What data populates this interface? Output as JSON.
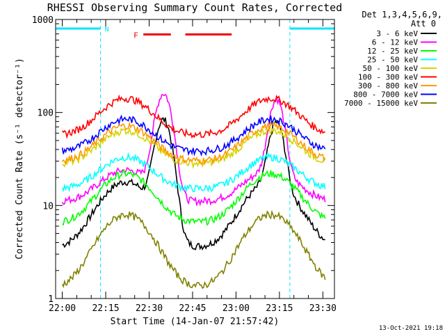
{
  "chart_data": {
    "type": "line",
    "title": "RHESSI Observing Summary Count Rates, Corrected",
    "xlabel": "Start Time (14-Jan-07 21:57:42)",
    "ylabel": "Corrected Count Rate (s⁻¹ detector⁻¹)",
    "y_scale": "log",
    "ylim": [
      1,
      1000
    ],
    "y_ticks": [
      "1",
      "10",
      "100",
      "1000"
    ],
    "xlim_minutes": [
      -2.3,
      94
    ],
    "x_ticks": [
      {
        "label": "22:00",
        "min": 0
      },
      {
        "label": "22:15",
        "min": 15
      },
      {
        "label": "22:30",
        "min": 30
      },
      {
        "label": "22:45",
        "min": 45
      },
      {
        "label": "23:00",
        "min": 60
      },
      {
        "label": "23:15",
        "min": 75
      },
      {
        "label": "23:30",
        "min": 90
      }
    ],
    "legend_header": [
      "Det 1,3,4,5,6,9,",
      "Att 0"
    ],
    "legend_position": "right",
    "series": [
      {
        "name": "3 - 6 keV",
        "color": "#000000",
        "base": 3.5,
        "peak": 18,
        "flare": 95
      },
      {
        "name": "6 - 12 keV",
        "color": "#ff00ff",
        "base": 11,
        "peak": 24,
        "flare": 170
      },
      {
        "name": "12 - 25 keV",
        "color": "#00ff00",
        "base": 6.5,
        "peak": 22,
        "flare": 0
      },
      {
        "name": "25 - 50 keV",
        "color": "#00ffff",
        "base": 15,
        "peak": 33,
        "flare": 0
      },
      {
        "name": "50 - 100 keV",
        "color": "#d4d400",
        "base": 28,
        "peak": 64,
        "flare": 0
      },
      {
        "name": "100 - 300 keV",
        "color": "#ff0000",
        "base": 57,
        "peak": 142,
        "flare": 0
      },
      {
        "name": "300 - 800 keV",
        "color": "#ff9900",
        "base": 30,
        "peak": 72,
        "flare": 0
      },
      {
        "name": "800 - 7000 keV",
        "color": "#0000ff",
        "base": 38,
        "peak": 85,
        "flare": 0
      },
      {
        "name": "7000 - 15000 keV",
        "color": "#808000",
        "base": 1.3,
        "peak": 8,
        "flare": 0
      }
    ],
    "night_intervals_min": [
      [
        -2.3,
        13.2
      ],
      [
        78.6,
        94
      ]
    ],
    "night_label": "N",
    "flare_intervals_min": [
      [
        28,
        37.5
      ],
      [
        42.5,
        58.5
      ]
    ],
    "flare_label": "F",
    "timestamp": "13-Oct-2021 19:18"
  }
}
